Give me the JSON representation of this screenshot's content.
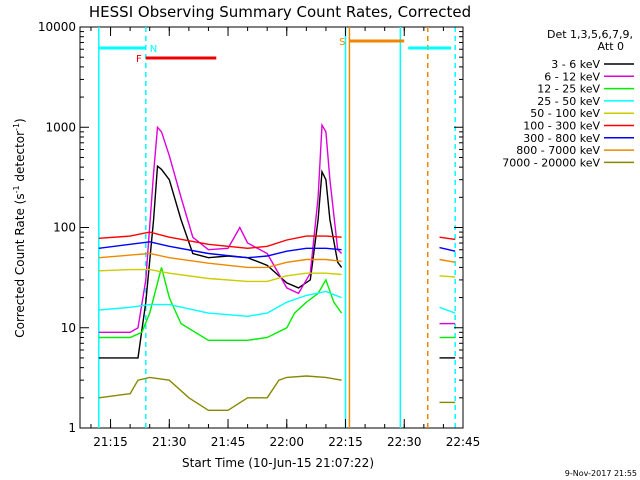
{
  "chart_data": {
    "type": "line",
    "title": "HESSI Observing Summary Count Rates, Corrected",
    "xlabel": "Start Time (10-Jun-15 21:07:22)",
    "ylabel_main": "Corrected Count Rate (s",
    "ylabel_sup1": "-1",
    "ylabel_mid": " detector",
    "ylabel_sup2": "-1",
    "ylabel_end": ")",
    "yscale": "log",
    "ylim": [
      1,
      10000
    ],
    "xlim_minutes": [
      21.12,
      22.75
    ],
    "x_ticks": [
      "21:15",
      "21:30",
      "21:45",
      "22:00",
      "22:15",
      "22:30",
      "22:45"
    ],
    "y_ticks": [
      "1",
      "10",
      "100",
      "1000",
      "10000"
    ],
    "legend_header": [
      "Det 1,3,5,6,7,9,",
      "Att 0"
    ],
    "legend_placement": "right",
    "footer_date": "9-Nov-2017 21:55",
    "gap": {
      "start": "22:15",
      "end": "22:39"
    },
    "series": [
      {
        "name": "3 - 6 keV",
        "color": "#000000",
        "x": [
          "21:12",
          "21:20",
          "21:22",
          "21:24",
          "21:26",
          "21:27",
          "21:28",
          "21:30",
          "21:33",
          "21:36",
          "21:40",
          "21:45",
          "21:50",
          "21:55",
          "22:00",
          "22:03",
          "22:06",
          "22:08",
          "22:09",
          "22:10",
          "22:11",
          "22:13",
          "22:14",
          "22:39",
          "22:43"
        ],
        "y": [
          5,
          5,
          5,
          18,
          120,
          410,
          380,
          300,
          120,
          55,
          50,
          52,
          50,
          42,
          28,
          25,
          30,
          120,
          360,
          300,
          120,
          45,
          40,
          5,
          5
        ]
      },
      {
        "name": "6 - 12 keV",
        "color": "#dd00dd",
        "x": [
          "21:12",
          "21:20",
          "21:22",
          "21:24",
          "21:26",
          "21:27",
          "21:28",
          "21:30",
          "21:33",
          "21:36",
          "21:40",
          "21:45",
          "21:48",
          "21:50",
          "21:55",
          "22:00",
          "22:03",
          "22:06",
          "22:08",
          "22:09",
          "22:10",
          "22:11",
          "22:13",
          "22:14",
          "22:39",
          "22:43"
        ],
        "y": [
          9,
          9,
          10,
          30,
          350,
          1000,
          900,
          520,
          200,
          80,
          60,
          62,
          100,
          70,
          55,
          25,
          22,
          35,
          200,
          1050,
          900,
          300,
          60,
          55,
          11,
          11
        ]
      },
      {
        "name": "12 - 25 keV",
        "color": "#00ee00",
        "x": [
          "21:12",
          "21:20",
          "21:23",
          "21:25",
          "21:27",
          "21:28",
          "21:30",
          "21:33",
          "21:40",
          "21:50",
          "21:55",
          "22:00",
          "22:02",
          "22:05",
          "22:08",
          "22:10",
          "22:12",
          "22:14",
          "22:39",
          "22:43"
        ],
        "y": [
          8,
          8,
          9,
          14,
          28,
          40,
          20,
          11,
          7.5,
          7.5,
          8,
          10,
          14,
          18,
          22,
          30,
          18,
          14,
          8,
          8
        ]
      },
      {
        "name": "25 - 50 keV",
        "color": "#00ffff",
        "x": [
          "21:12",
          "21:20",
          "21:25",
          "21:30",
          "21:40",
          "21:50",
          "21:55",
          "22:00",
          "22:05",
          "22:10",
          "22:14",
          "22:39",
          "22:43"
        ],
        "y": [
          15,
          16,
          17,
          17,
          14,
          13,
          14,
          18,
          21,
          23,
          20,
          16,
          14
        ]
      },
      {
        "name": "50 - 100 keV",
        "color": "#cccc00",
        "x": [
          "21:12",
          "21:20",
          "21:25",
          "21:30",
          "21:40",
          "21:50",
          "21:55",
          "22:00",
          "22:05",
          "22:10",
          "22:14",
          "22:39",
          "22:43"
        ],
        "y": [
          37,
          38,
          38,
          35,
          31,
          29,
          29,
          33,
          35,
          35,
          34,
          33,
          32
        ]
      },
      {
        "name": "100 - 300 keV",
        "color": "#ff0000",
        "x": [
          "21:12",
          "21:20",
          "21:25",
          "21:30",
          "21:40",
          "21:50",
          "21:55",
          "22:00",
          "22:05",
          "22:10",
          "22:14",
          "22:39",
          "22:43"
        ],
        "y": [
          78,
          82,
          90,
          80,
          68,
          62,
          65,
          75,
          82,
          82,
          80,
          80,
          76
        ]
      },
      {
        "name": "300 - 800 keV",
        "color": "#0000ff",
        "x": [
          "21:12",
          "21:20",
          "21:25",
          "21:30",
          "21:40",
          "21:50",
          "21:55",
          "22:00",
          "22:05",
          "22:10",
          "22:14",
          "22:39",
          "22:43"
        ],
        "y": [
          62,
          68,
          72,
          65,
          55,
          50,
          52,
          58,
          62,
          62,
          60,
          63,
          58
        ]
      },
      {
        "name": "800 - 7000 keV",
        "color": "#ee8800",
        "x": [
          "21:12",
          "21:20",
          "21:25",
          "21:30",
          "21:40",
          "21:50",
          "21:55",
          "22:00",
          "22:05",
          "22:10",
          "22:14",
          "22:39",
          "22:43"
        ],
        "y": [
          50,
          53,
          55,
          50,
          44,
          40,
          40,
          45,
          48,
          48,
          46,
          48,
          45
        ]
      },
      {
        "name": "7000 - 20000 keV",
        "color": "#888800",
        "x": [
          "21:12",
          "21:20",
          "21:22",
          "21:25",
          "21:30",
          "21:35",
          "21:40",
          "21:45",
          "21:50",
          "21:55",
          "21:58",
          "22:00",
          "22:05",
          "22:10",
          "22:14",
          "22:39",
          "22:43"
        ],
        "y": [
          2,
          2.2,
          3,
          3.2,
          3,
          2,
          1.5,
          1.5,
          2,
          2,
          3,
          3.2,
          3.3,
          3.2,
          3,
          1.8,
          1.8
        ]
      }
    ],
    "flag_bars": [
      {
        "label": "N",
        "color": "#00ffff",
        "segments": [
          [
            "21:12",
            "21:24"
          ],
          [
            "22:31",
            "22:42"
          ]
        ]
      },
      {
        "label": "F",
        "color": "#ee0000",
        "segments": [
          [
            "21:24",
            "21:42"
          ]
        ]
      },
      {
        "label": "S",
        "color": "#ee8800",
        "segments": [
          [
            "22:16",
            "22:30"
          ]
        ]
      }
    ],
    "vertical_markers": [
      {
        "time": "21:12",
        "color": "#00ffff",
        "style": "solid"
      },
      {
        "time": "21:24",
        "color": "#00ffff",
        "style": "dashed"
      },
      {
        "time": "22:15",
        "color": "#00ffff",
        "style": "solid"
      },
      {
        "time": "22:16",
        "color": "#ee8800",
        "style": "solid"
      },
      {
        "time": "22:29",
        "color": "#00ffff",
        "style": "solid"
      },
      {
        "time": "22:36",
        "color": "#ee8800",
        "style": "dashed"
      },
      {
        "time": "22:43",
        "color": "#00ffff",
        "style": "dashed"
      }
    ]
  }
}
